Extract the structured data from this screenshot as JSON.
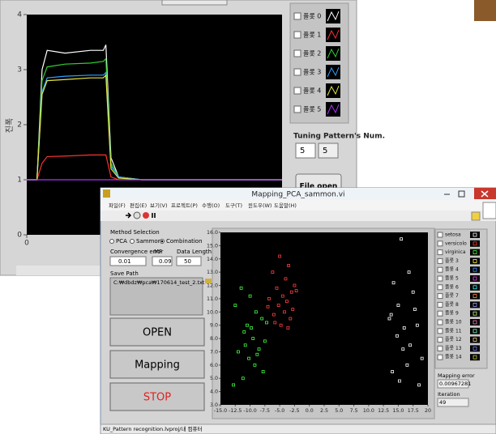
{
  "back_window": {
    "graph": {
      "type": "line",
      "y_label": "진폭",
      "xlim": [
        0,
        100
      ],
      "xticks": [
        0
      ],
      "ylim": [
        0,
        4
      ],
      "yticks": [
        0,
        1,
        2,
        3,
        4
      ],
      "x": [
        0,
        4,
        6,
        8,
        15,
        25,
        30,
        31,
        33,
        36,
        45,
        100
      ],
      "series": [
        {
          "name": "플롯 0",
          "color": "#ffffff",
          "values": [
            1,
            1,
            3.0,
            3.35,
            3.3,
            3.35,
            3.35,
            3.45,
            1.4,
            1.05,
            1,
            1
          ]
        },
        {
          "name": "플롯 1",
          "color": "#ff3030",
          "values": [
            1,
            1,
            1.3,
            1.42,
            1.43,
            1.45,
            1.45,
            1.45,
            1.05,
            1.0,
            1,
            1
          ]
        },
        {
          "name": "플롯 2",
          "color": "#30d030",
          "values": [
            1,
            1,
            2.8,
            3.05,
            3.1,
            3.12,
            3.15,
            3.2,
            1.3,
            1.05,
            1,
            1
          ]
        },
        {
          "name": "플롯 3",
          "color": "#30a0ff",
          "values": [
            1,
            1,
            2.6,
            2.85,
            2.88,
            2.9,
            2.9,
            2.95,
            1.25,
            1.05,
            1,
            1
          ]
        },
        {
          "name": "플롯 4",
          "color": "#e8e840",
          "values": [
            1,
            1,
            2.55,
            2.8,
            2.82,
            2.85,
            2.85,
            2.9,
            1.2,
            1.03,
            1,
            1
          ]
        },
        {
          "name": "플롯 5",
          "color": "#b030ff",
          "values": [
            1,
            1,
            1,
            1,
            1,
            1,
            1,
            1,
            1,
            1,
            1,
            1
          ]
        }
      ]
    },
    "tuning_label": "Tuning Pattern's Num.",
    "tuning_values": [
      "5",
      "5"
    ],
    "file_open": "File open"
  },
  "front_window": {
    "title": "Mapping_PCA_sammon.vi",
    "menu": [
      "파일(F)",
      "편집(E)",
      "보기(V)",
      "프로젝트(P)",
      "수행(O)",
      "도구(T)",
      "윈도우(W)",
      "도움말(H)"
    ],
    "method_label": "Method Selection",
    "methods": [
      "PCA",
      "Sammon",
      "Combination"
    ],
    "selected_method": 2,
    "convergence_label": "Convergence error",
    "convergence": "0.01",
    "mf_label": "MF",
    "mf": "0.09",
    "length_label": "Data Length",
    "length": "50",
    "save_path_label": "Save Path",
    "save_path": "C:₩dbdz₩pca₩170614_test_2.txt",
    "buttons": [
      "OPEN",
      "Mapping",
      "STOP"
    ],
    "scatter": {
      "type": "scatter",
      "xlim": [
        -15,
        20
      ],
      "xticks": [
        {
          "value": -15,
          "label": "-15.0"
        },
        {
          "value": -12.5,
          "label": "-12.5"
        },
        {
          "value": -10,
          "label": "-10.0"
        },
        {
          "value": -7.5,
          "label": "-7.5"
        },
        {
          "value": -5,
          "label": "-5.0"
        },
        {
          "value": -2.5,
          "label": "-2.5"
        },
        {
          "value": 0,
          "label": "0.0"
        },
        {
          "value": 2.5,
          "label": "2.5"
        },
        {
          "value": 5,
          "label": "5.0"
        },
        {
          "value": 7.5,
          "label": "7.5"
        },
        {
          "value": 10,
          "label": "10.0"
        },
        {
          "value": 12.5,
          "label": "12.5"
        },
        {
          "value": 15,
          "label": "15.0"
        },
        {
          "value": 17.5,
          "label": "17.5"
        },
        {
          "value": 20,
          "label": "20"
        }
      ],
      "ylim": [
        3,
        16
      ],
      "yticks": [
        {
          "value": 3,
          "label": "3.0"
        },
        {
          "value": 4,
          "label": "4.0"
        },
        {
          "value": 5,
          "label": "5.0"
        },
        {
          "value": 6,
          "label": "6.0"
        },
        {
          "value": 7,
          "label": "7.0"
        },
        {
          "value": 8,
          "label": "8.0"
        },
        {
          "value": 9,
          "label": "9.0"
        },
        {
          "value": 10,
          "label": "10.0"
        },
        {
          "value": 11,
          "label": "11.0"
        },
        {
          "value": 12,
          "label": "12.0"
        },
        {
          "value": 13,
          "label": "13.0"
        },
        {
          "value": 14,
          "label": "14.0"
        },
        {
          "value": 15,
          "label": "15.0"
        },
        {
          "value": 16,
          "label": "16.0"
        }
      ],
      "series": [
        {
          "name": "setosa",
          "color": "#ffffff",
          "x": [
            15.5,
            14.2,
            16.8,
            17.5,
            15.0,
            13.5,
            18.2,
            16.0,
            14.8,
            17.0,
            15.8,
            19.0,
            16.5,
            14.0,
            15.2,
            18.5,
            13.8,
            17.8
          ],
          "y": [
            15.5,
            12.2,
            13.0,
            11.5,
            10.5,
            9.5,
            9.0,
            8.8,
            8.2,
            7.5,
            7.2,
            6.5,
            6.0,
            5.5,
            4.8,
            4.5,
            9.8,
            10.2
          ]
        },
        {
          "name": "versicolo",
          "color": "#ff4040",
          "x": [
            -5.0,
            -3.5,
            -6.2,
            -4.0,
            -2.5,
            -5.5,
            -3.0,
            -4.5,
            -6.8,
            -3.8,
            -5.2,
            -2.8,
            -4.2,
            -6.0,
            -3.2,
            -5.8,
            -4.8,
            -2.2,
            -7.0,
            -3.6
          ],
          "y": [
            14.2,
            13.5,
            13.0,
            12.5,
            12.0,
            11.8,
            11.5,
            11.2,
            11.0,
            10.8,
            10.5,
            10.2,
            10.0,
            9.8,
            9.5,
            9.2,
            9.0,
            11.6,
            10.4,
            8.8
          ]
        },
        {
          "name": "virginica",
          "color": "#40ff40",
          "x": [
            -11.5,
            -10.0,
            -12.5,
            -9.0,
            -8.0,
            -10.5,
            -11.0,
            -9.5,
            -7.5,
            -8.5,
            -12.0,
            -10.2,
            -9.2,
            -7.8,
            -11.2,
            -8.8,
            -10.8,
            -9.8,
            -7.2,
            -12.8
          ],
          "y": [
            11.8,
            11.2,
            10.5,
            10.0,
            9.5,
            9.0,
            8.5,
            8.0,
            7.8,
            7.2,
            7.0,
            6.5,
            6.0,
            5.5,
            5.0,
            6.8,
            7.5,
            8.8,
            9.2,
            4.5
          ]
        },
        {
          "name": "플롯 3",
          "color": "#ffff40",
          "x": [],
          "y": []
        },
        {
          "name": "플롯 4",
          "color": "#40a0ff",
          "x": [],
          "y": []
        },
        {
          "name": "플롯 5",
          "color": "#ff40ff",
          "x": [],
          "y": []
        },
        {
          "name": "플롯 6",
          "color": "#40ffff",
          "x": [],
          "y": []
        },
        {
          "name": "플롯 7",
          "color": "#ff9040",
          "x": [],
          "y": []
        },
        {
          "name": "플롯 8",
          "color": "#a0a0ff",
          "x": [],
          "y": []
        },
        {
          "name": "플롯 9",
          "color": "#c0ff80",
          "x": [],
          "y": []
        },
        {
          "name": "플롯 10",
          "color": "#ff80c0",
          "x": [],
          "y": []
        },
        {
          "name": "플롯 11",
          "color": "#80ffc0",
          "x": [],
          "y": []
        },
        {
          "name": "플롯 12",
          "color": "#ffd080",
          "x": [],
          "y": []
        },
        {
          "name": "플롯 13",
          "color": "#8080ff",
          "x": [],
          "y": []
        },
        {
          "name": "플롯 14",
          "color": "#d0d040",
          "x": [],
          "y": []
        }
      ]
    },
    "mapping_error_label": "Mapping error",
    "mapping_error": "0.00967281",
    "iteration_label": "Iteration",
    "iteration": "49",
    "status": "KU_Pattern recognition.lvproj/내 컴퓨터"
  }
}
